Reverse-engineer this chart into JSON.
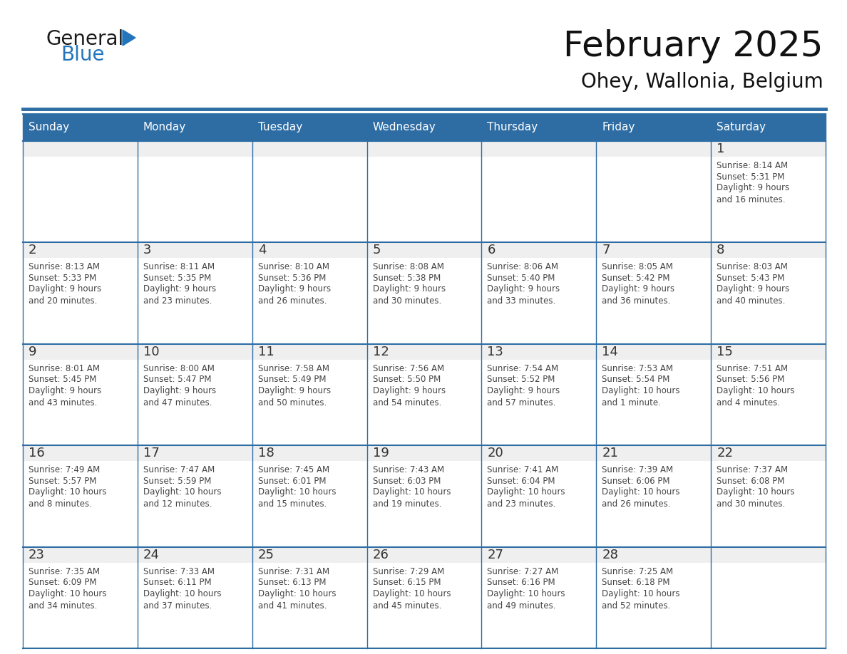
{
  "title": "February 2025",
  "subtitle": "Ohey, Wallonia, Belgium",
  "days_of_week": [
    "Sunday",
    "Monday",
    "Tuesday",
    "Wednesday",
    "Thursday",
    "Friday",
    "Saturday"
  ],
  "header_bg": "#2E6DA4",
  "header_fg": "#FFFFFF",
  "cell_bg_top": "#EFEFEF",
  "cell_bg_main": "#FFFFFF",
  "border_color": "#2E6DA4",
  "day_num_color": "#333333",
  "text_color": "#444444",
  "calendar_data": [
    [
      null,
      null,
      null,
      null,
      null,
      null,
      {
        "day": "1",
        "sunrise": "8:14 AM",
        "sunset": "5:31 PM",
        "daylight": "9 hours\nand 16 minutes."
      }
    ],
    [
      {
        "day": "2",
        "sunrise": "8:13 AM",
        "sunset": "5:33 PM",
        "daylight": "9 hours\nand 20 minutes."
      },
      {
        "day": "3",
        "sunrise": "8:11 AM",
        "sunset": "5:35 PM",
        "daylight": "9 hours\nand 23 minutes."
      },
      {
        "day": "4",
        "sunrise": "8:10 AM",
        "sunset": "5:36 PM",
        "daylight": "9 hours\nand 26 minutes."
      },
      {
        "day": "5",
        "sunrise": "8:08 AM",
        "sunset": "5:38 PM",
        "daylight": "9 hours\nand 30 minutes."
      },
      {
        "day": "6",
        "sunrise": "8:06 AM",
        "sunset": "5:40 PM",
        "daylight": "9 hours\nand 33 minutes."
      },
      {
        "day": "7",
        "sunrise": "8:05 AM",
        "sunset": "5:42 PM",
        "daylight": "9 hours\nand 36 minutes."
      },
      {
        "day": "8",
        "sunrise": "8:03 AM",
        "sunset": "5:43 PM",
        "daylight": "9 hours\nand 40 minutes."
      }
    ],
    [
      {
        "day": "9",
        "sunrise": "8:01 AM",
        "sunset": "5:45 PM",
        "daylight": "9 hours\nand 43 minutes."
      },
      {
        "day": "10",
        "sunrise": "8:00 AM",
        "sunset": "5:47 PM",
        "daylight": "9 hours\nand 47 minutes."
      },
      {
        "day": "11",
        "sunrise": "7:58 AM",
        "sunset": "5:49 PM",
        "daylight": "9 hours\nand 50 minutes."
      },
      {
        "day": "12",
        "sunrise": "7:56 AM",
        "sunset": "5:50 PM",
        "daylight": "9 hours\nand 54 minutes."
      },
      {
        "day": "13",
        "sunrise": "7:54 AM",
        "sunset": "5:52 PM",
        "daylight": "9 hours\nand 57 minutes."
      },
      {
        "day": "14",
        "sunrise": "7:53 AM",
        "sunset": "5:54 PM",
        "daylight": "10 hours\nand 1 minute."
      },
      {
        "day": "15",
        "sunrise": "7:51 AM",
        "sunset": "5:56 PM",
        "daylight": "10 hours\nand 4 minutes."
      }
    ],
    [
      {
        "day": "16",
        "sunrise": "7:49 AM",
        "sunset": "5:57 PM",
        "daylight": "10 hours\nand 8 minutes."
      },
      {
        "day": "17",
        "sunrise": "7:47 AM",
        "sunset": "5:59 PM",
        "daylight": "10 hours\nand 12 minutes."
      },
      {
        "day": "18",
        "sunrise": "7:45 AM",
        "sunset": "6:01 PM",
        "daylight": "10 hours\nand 15 minutes."
      },
      {
        "day": "19",
        "sunrise": "7:43 AM",
        "sunset": "6:03 PM",
        "daylight": "10 hours\nand 19 minutes."
      },
      {
        "day": "20",
        "sunrise": "7:41 AM",
        "sunset": "6:04 PM",
        "daylight": "10 hours\nand 23 minutes."
      },
      {
        "day": "21",
        "sunrise": "7:39 AM",
        "sunset": "6:06 PM",
        "daylight": "10 hours\nand 26 minutes."
      },
      {
        "day": "22",
        "sunrise": "7:37 AM",
        "sunset": "6:08 PM",
        "daylight": "10 hours\nand 30 minutes."
      }
    ],
    [
      {
        "day": "23",
        "sunrise": "7:35 AM",
        "sunset": "6:09 PM",
        "daylight": "10 hours\nand 34 minutes."
      },
      {
        "day": "24",
        "sunrise": "7:33 AM",
        "sunset": "6:11 PM",
        "daylight": "10 hours\nand 37 minutes."
      },
      {
        "day": "25",
        "sunrise": "7:31 AM",
        "sunset": "6:13 PM",
        "daylight": "10 hours\nand 41 minutes."
      },
      {
        "day": "26",
        "sunrise": "7:29 AM",
        "sunset": "6:15 PM",
        "daylight": "10 hours\nand 45 minutes."
      },
      {
        "day": "27",
        "sunrise": "7:27 AM",
        "sunset": "6:16 PM",
        "daylight": "10 hours\nand 49 minutes."
      },
      {
        "day": "28",
        "sunrise": "7:25 AM",
        "sunset": "6:18 PM",
        "daylight": "10 hours\nand 52 minutes."
      },
      null
    ]
  ],
  "logo_text1": "General",
  "logo_text2": "Blue",
  "logo_color1": "#1a1a1a",
  "logo_color2": "#2375BB",
  "logo_triangle_color": "#2375BB"
}
